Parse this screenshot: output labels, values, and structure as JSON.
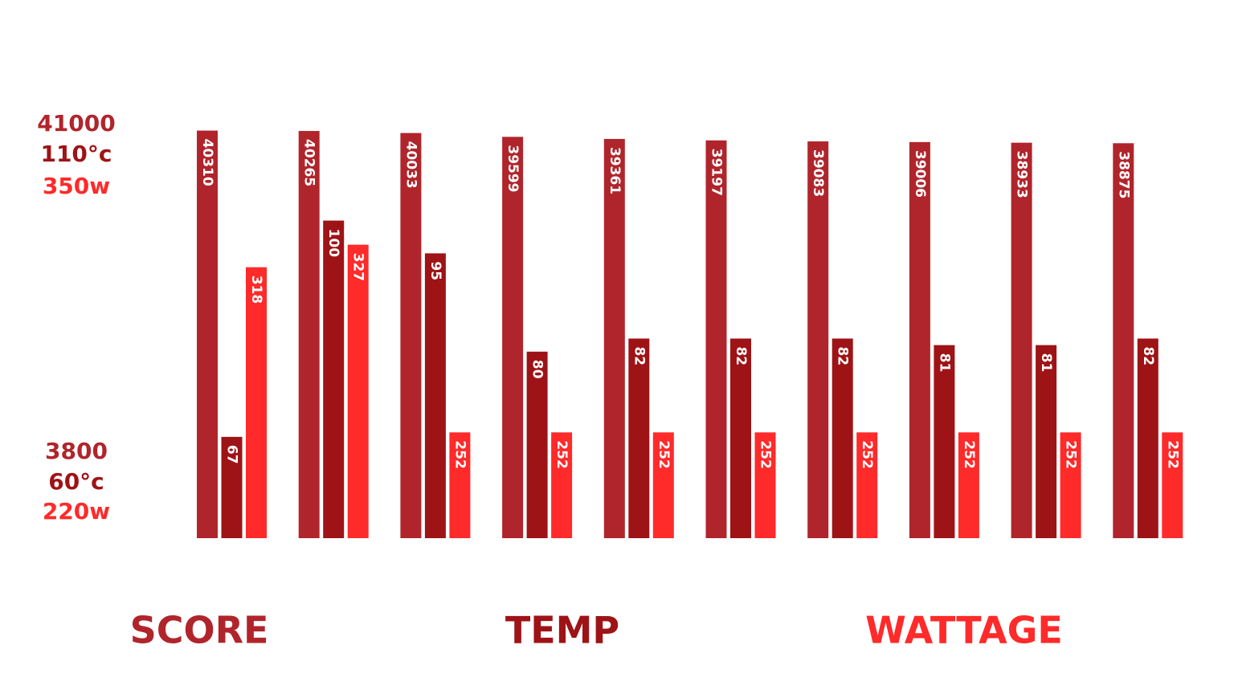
{
  "chart_data": {
    "type": "bar",
    "categories": [
      null,
      null,
      null,
      null,
      null,
      null,
      null,
      null,
      null,
      null
    ],
    "series": [
      {
        "name": "SCORE",
        "color": "#b0252b",
        "values": [
          40310,
          40265,
          40033,
          39599,
          39361,
          39197,
          39083,
          39006,
          38933,
          38875
        ],
        "ylim": [
          3800,
          41000
        ],
        "yticks": [
          3800,
          41000
        ]
      },
      {
        "name": "TEMP",
        "color": "#9e1316",
        "values": [
          67,
          100,
          95,
          80,
          82,
          82,
          82,
          81,
          81,
          82
        ],
        "ylim": [
          60,
          110
        ],
        "yticks": [
          {
            "value": 60,
            "label": "60°c"
          },
          {
            "value": 110,
            "label": "110°c"
          }
        ]
      },
      {
        "name": "WATTAGE",
        "color": "#ff2a2a",
        "values": [
          318,
          327,
          252,
          252,
          252,
          252,
          252,
          252,
          252,
          252
        ],
        "ylim": [
          220,
          350
        ],
        "yticks": [
          {
            "value": 220,
            "label": "220w"
          },
          {
            "value": 350,
            "label": "350w"
          }
        ]
      }
    ]
  }
}
